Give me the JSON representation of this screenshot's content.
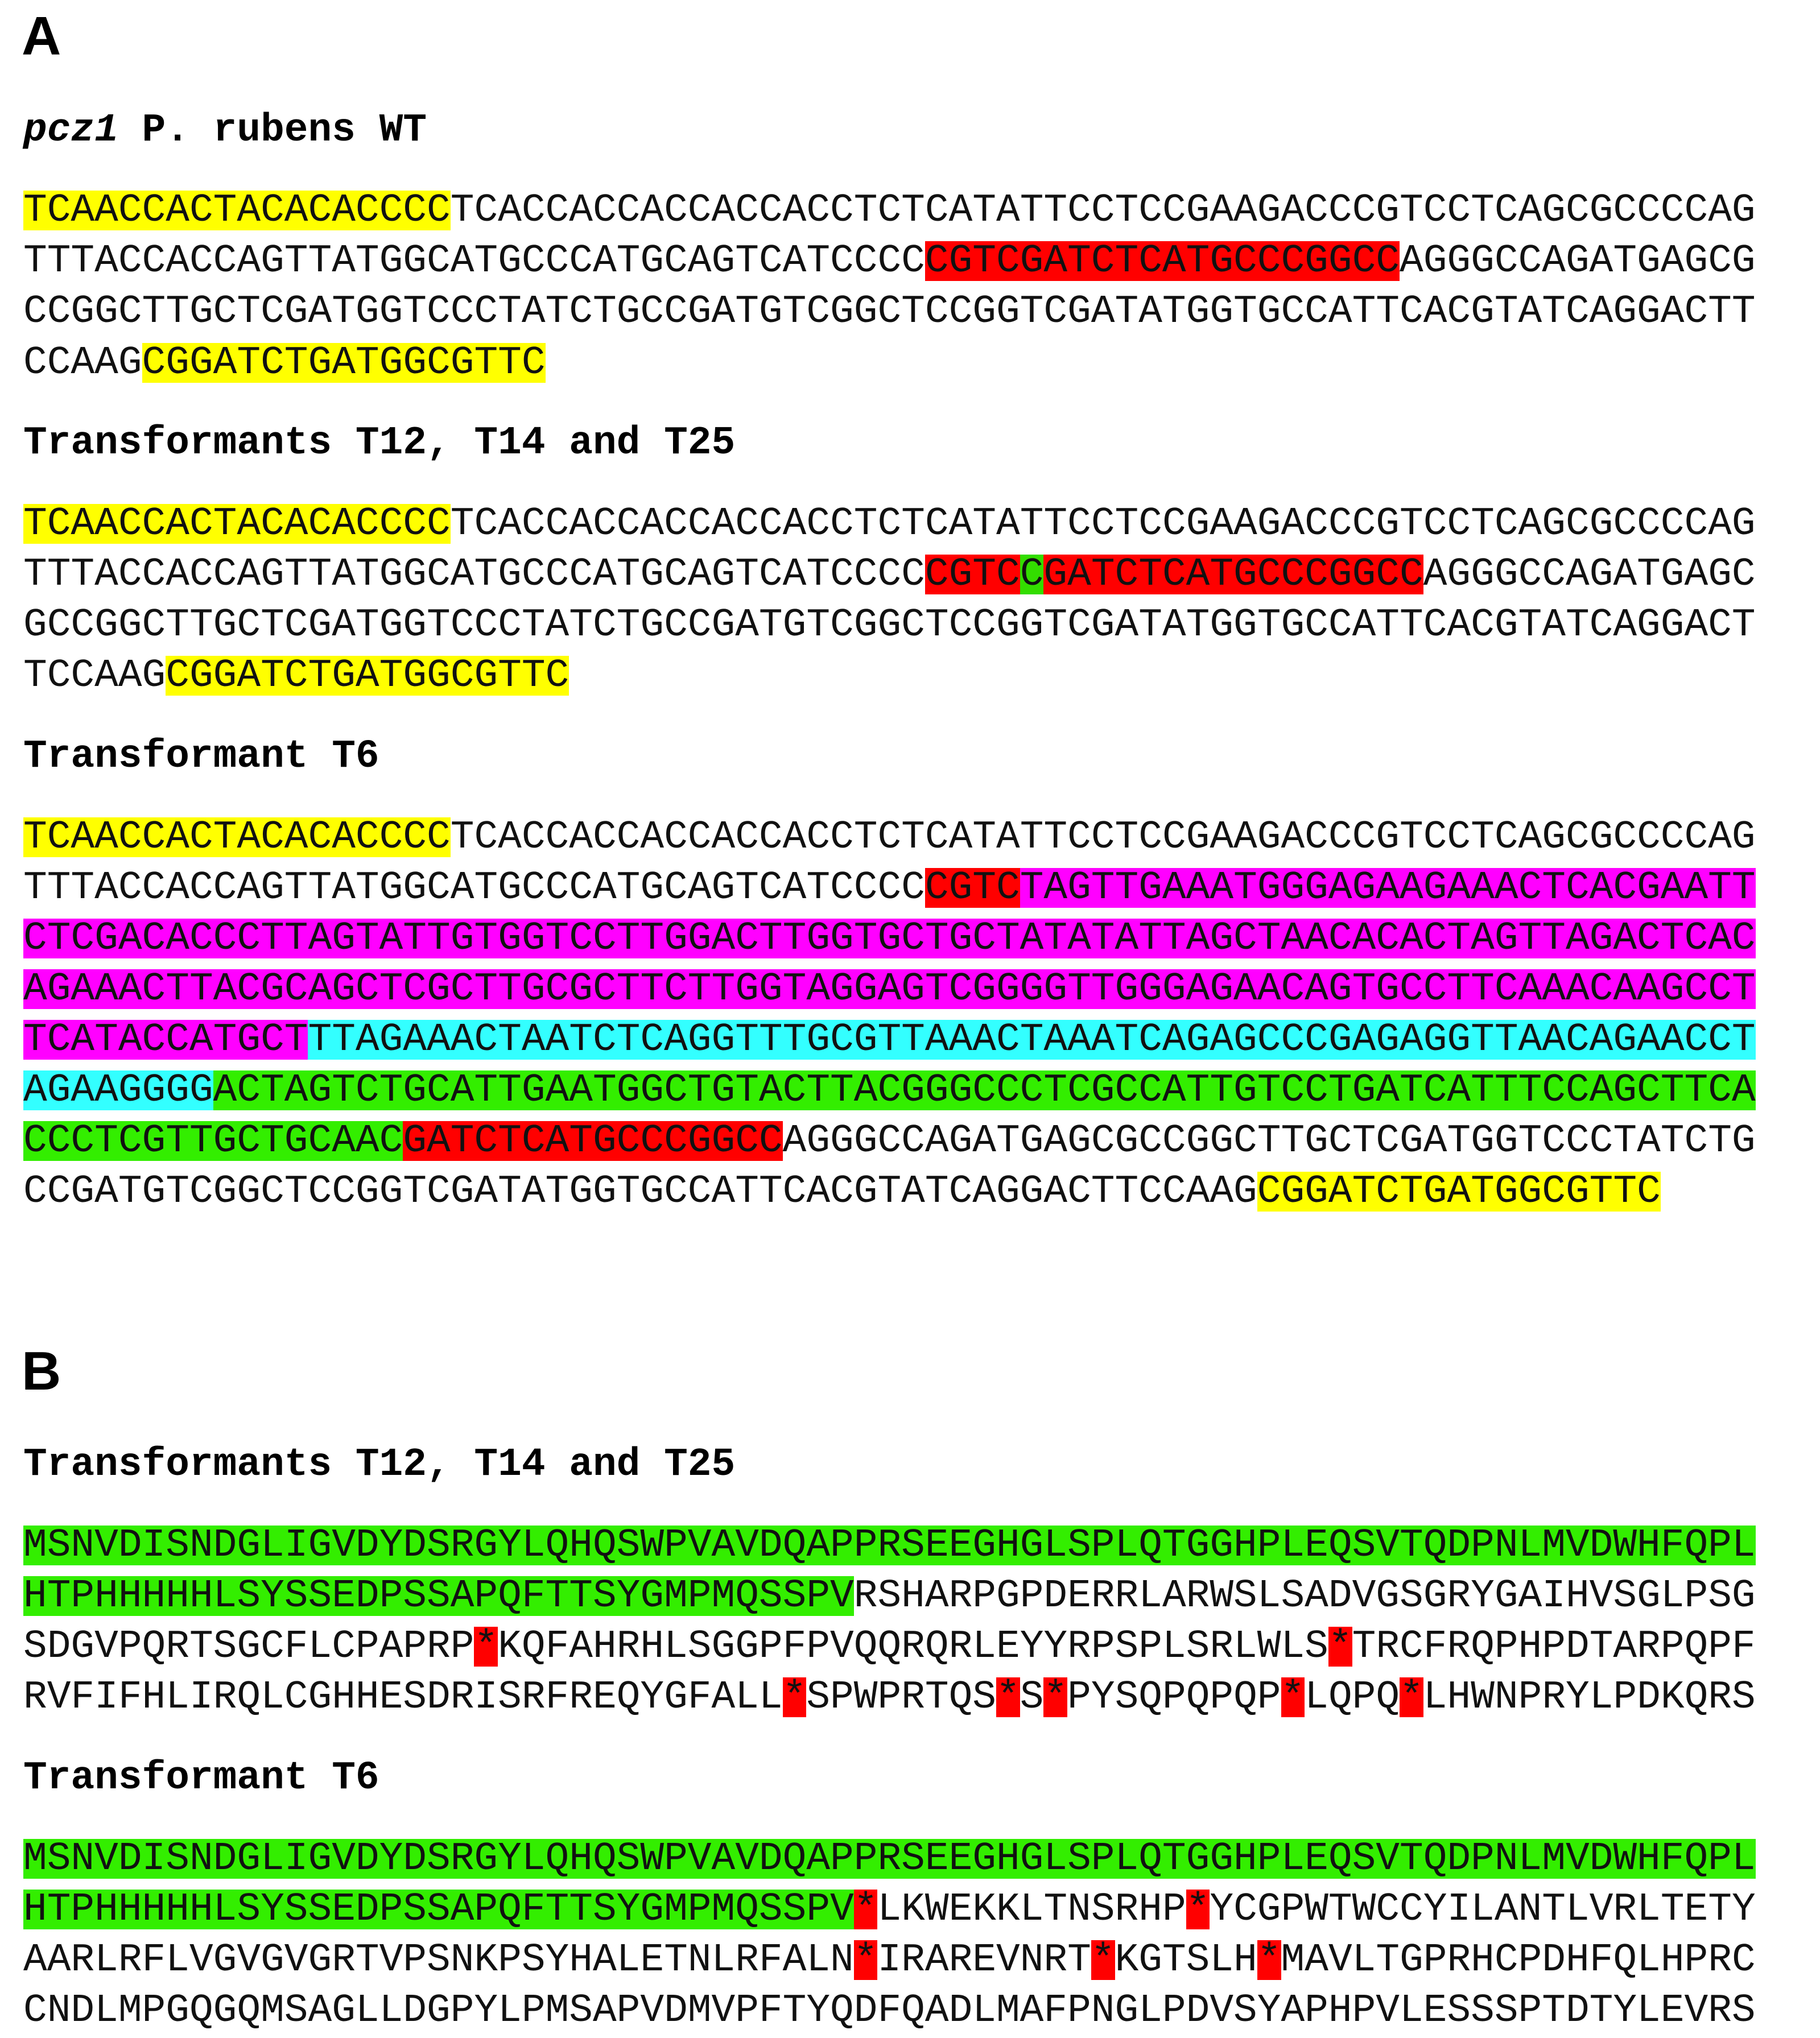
{
  "sections": [
    {
      "label": "A",
      "blocks": [
        {
          "gene": "pcz1",
          "heading": "P. rubens WT",
          "lines": [
            [
              {
                "text": "TCAACCACTACACACCCC",
                "color": "#ffff00"
              },
              {
                "text": "TCACCACCACCACCACCTCTCATATTCCTCCGAAGACCCGTCCTCAGCGCCCCAG"
              }
            ],
            [
              {
                "text": "TTTACCACCAGTTATGGCATGCCCATGCAGTCATCCCC"
              },
              {
                "text": "CGTCGATCTCATGCCCGGCC",
                "color": "#ff0000"
              },
              {
                "text": "AGGGCCAGATGAGCG"
              }
            ],
            [
              {
                "text": "CCGGCTTGCTCGATGGTCCCTATCTGCCGATGTCGGCTCCGGTCGATATGGTGCCATTCACGTATCAGGACTT"
              }
            ],
            [
              {
                "text": "CCAAG"
              },
              {
                "text": "CGGATCTGATGGCGTTC",
                "color": "#ffff00"
              }
            ]
          ]
        },
        {
          "heading": "Transformants T12, T14 and T25",
          "lines": [
            [
              {
                "text": "TCAACCACTACACACCCC",
                "color": "#ffff00"
              },
              {
                "text": "TCACCACCACCACCACCTCTCATATTCCTCCGAAGACCCGTCCTCAGCGCCCCAG"
              }
            ],
            [
              {
                "text": "TTTACCACCAGTTATGGCATGCCCATGCAGTCATCCCC"
              },
              {
                "text": "CGTC",
                "color": "#ff0000"
              },
              {
                "text": "C",
                "color": "#33dd00"
              },
              {
                "text": "GATCTCATGCCCGGCC",
                "color": "#ff0000"
              },
              {
                "text": "AGGGCCAGATGAGC"
              }
            ],
            [
              {
                "text": "GCCGGCTTGCTCGATGGTCCCTATCTGCCGATGTCGGCTCCGGTCGATATGGTGCCATTCACGTATCAGGACT"
              }
            ],
            [
              {
                "text": "TCCAAG"
              },
              {
                "text": "CGGATCTGATGGCGTTC",
                "color": "#ffff00"
              }
            ]
          ]
        },
        {
          "heading": "Transformant T6",
          "lines": [
            [
              {
                "text": "TCAACCACTACACACCCC",
                "color": "#ffff00"
              },
              {
                "text": "TCACCACCACCACCACCTCTCATATTCCTCCGAAGACCCGTCCTCAGCGCCCCAG"
              }
            ],
            [
              {
                "text": "TTTACCACCAGTTATGGCATGCCCATGCAGTCATCCCC"
              },
              {
                "text": "CGTC",
                "color": "#ff0000"
              },
              {
                "text": "TAGTTGAAATGGGAGAAGAAACTCACGAATT",
                "color": "#ff00ff"
              }
            ],
            [
              {
                "text": "CTCGACACCCTTAGTATTGTGGTCCTTGGACTTGGTGCTGCTATATATTAGCTAACACACTAGTTAGACTCAC",
                "color": "#ff00ff"
              }
            ],
            [
              {
                "text": "AGAAACTTACGCAGCTCGCTTGCGCTTCTTGGTAGGAGTCGGGGTTGGGAGAACAGTGCCTTCAAACAAGCCT",
                "color": "#ff00ff"
              }
            ],
            [
              {
                "text": "TCATACCATGCT",
                "color": "#ff00ff"
              },
              {
                "text": "TTAGAAACTAATCTCAGGTTTGCGTTAAACTAAATCAGAGCCCGAGAGGTTAACAGAACCT",
                "color": "#33ffff"
              }
            ],
            [
              {
                "text": "AGAAGGGG",
                "color": "#33ffff"
              },
              {
                "text": "ACTAGTCTGCATTGAATGGCTGTACTTACGGGCCCTCGCCATTGTCCTGATCATTTCCAGCTTCA",
                "color": "#33ee00"
              }
            ],
            [
              {
                "text": "CCCTCGTTGCTGCAAC",
                "color": "#33ee00"
              },
              {
                "text": "GATCTCATGCCCGGCC",
                "color": "#ff0000"
              },
              {
                "text": "AGGGCCAGATGAGCGCCGGCTTGCTCGATGGTCCCTATCTG"
              }
            ],
            [
              {
                "text": "CCGATGTCGGCTCCGGTCGATATGGTGCCATTCACGTATCAGGACTTCCAAG"
              },
              {
                "text": "CGGATCTGATGGCGTTC",
                "color": "#ffff00"
              }
            ]
          ]
        }
      ]
    },
    {
      "label": "B",
      "blocks": [
        {
          "heading": "Transformants T12, T14 and T25",
          "lines": [
            [
              {
                "text": "MSNVDISNDGLIGVDYDSRGYLQHQSWPVAVDQAPPRSEEGHGLSPLQTGGHPLEQSVTQDPNLMVDWHFQPL",
                "color": "#33ee00"
              }
            ],
            [
              {
                "text": "HTPHHHHHLSYSSEDPSSAPQFTTSYGMPMQSSPV",
                "color": "#33ee00"
              },
              {
                "text": "RSHARPGPDERRLARWSLSADVGSGRYGAIHVSGLPSG"
              }
            ],
            [
              {
                "text": "SDGVPQRTSGCFLCPAPRP"
              },
              {
                "text": "*",
                "color": "#ff0000"
              },
              {
                "text": "KQFAHRHLSGGPFPVQQRQRLEYYRPSPLSRLWLS"
              },
              {
                "text": "*",
                "color": "#ff0000"
              },
              {
                "text": "TRCFRQPHPDTARPQPF"
              }
            ],
            [
              {
                "text": "RVFIFHLIRQLCGHHESDRISRFREQYGFALL"
              },
              {
                "text": "*",
                "color": "#ff0000"
              },
              {
                "text": "SPWPRTQS"
              },
              {
                "text": "*",
                "color": "#ff0000"
              },
              {
                "text": "S"
              },
              {
                "text": "*",
                "color": "#ff0000"
              },
              {
                "text": "PYSQPQPQP"
              },
              {
                "text": "*",
                "color": "#ff0000"
              },
              {
                "text": "LQPQ"
              },
              {
                "text": "*",
                "color": "#ff0000"
              },
              {
                "text": "LHWNPRYLPDKQRS"
              }
            ]
          ]
        },
        {
          "heading": "Transformant T6",
          "lines": [
            [
              {
                "text": "MSNVDISNDGLIGVDYDSRGYLQHQSWPVAVDQAPPRSEEGHGLSPLQTGGHPLEQSVTQDPNLMVDWHFQPL",
                "color": "#33ee00"
              }
            ],
            [
              {
                "text": "HTPHHHHHLSYSSEDPSSAPQFTTSYGMPMQSSPV",
                "color": "#33ee00"
              },
              {
                "text": "*",
                "color": "#ff0000"
              },
              {
                "text": "LKWEKKLTNSRHP"
              },
              {
                "text": "*",
                "color": "#ff0000"
              },
              {
                "text": "YCGPWTWCCYILANTLVRLTETY"
              }
            ],
            [
              {
                "text": "AARLRFLVGVGVGRTVPSNKPSYHALETNLRFALN"
              },
              {
                "text": "*",
                "color": "#ff0000"
              },
              {
                "text": "IRAREVNRT"
              },
              {
                "text": "*",
                "color": "#ff0000"
              },
              {
                "text": "KGTSLH"
              },
              {
                "text": "*",
                "color": "#ff0000"
              },
              {
                "text": "MAVLTGPRHCPDHFQLHPRC"
              }
            ],
            [
              {
                "text": "CNDLMPGQGQMSAGLLDGPYLPMSAPVDMVPFTYQDFQADLMAFPNGLPDVSYAPHPVLESSSPTDTYLEVRS"
              }
            ]
          ]
        }
      ]
    }
  ]
}
